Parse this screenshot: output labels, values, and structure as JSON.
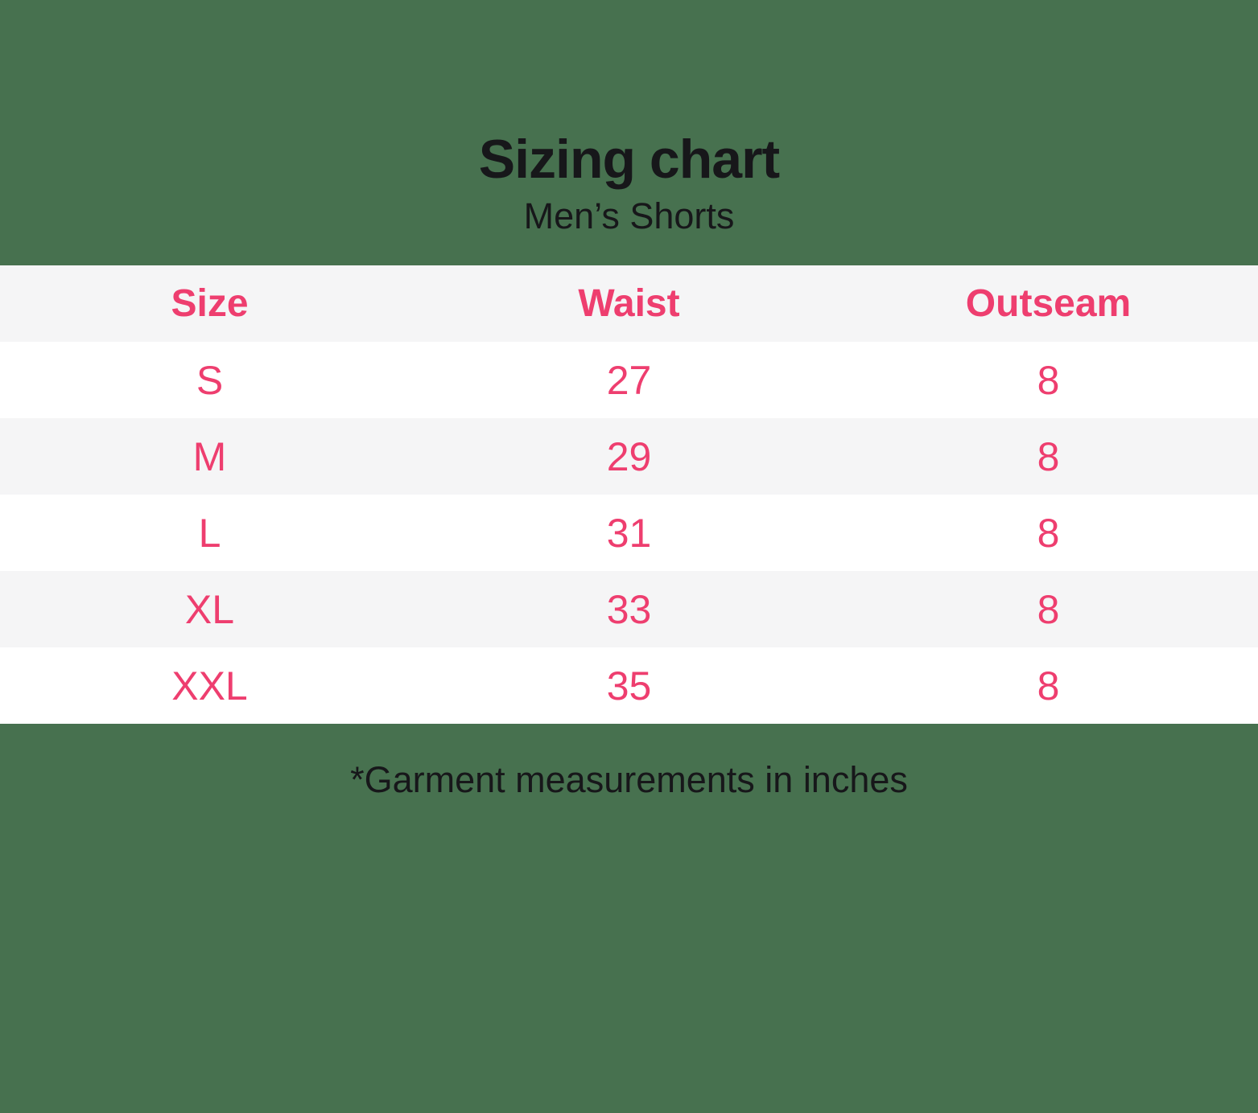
{
  "header": {
    "title": "Sizing chart",
    "subtitle": "Men’s Shorts"
  },
  "table": {
    "columns": [
      "Size",
      "Waist",
      "Outseam"
    ],
    "rows": [
      [
        "S",
        "27",
        "8"
      ],
      [
        "M",
        "29",
        "8"
      ],
      [
        "L",
        "31",
        "8"
      ],
      [
        "XL",
        "33",
        "8"
      ],
      [
        "XXL",
        "35",
        "8"
      ]
    ]
  },
  "footer": {
    "note": "*Garment measurements in inches"
  },
  "colors": {
    "background_green": "#47714F",
    "accent_pink": "#EE3E6F",
    "row_alt_gray": "#F5F5F6",
    "row_white": "#FFFFFF",
    "text_black": "#17171A"
  },
  "chart_data": {
    "type": "table",
    "title": "Sizing chart",
    "subtitle": "Men’s Shorts",
    "columns": [
      "Size",
      "Waist",
      "Outseam"
    ],
    "rows": [
      {
        "size": "S",
        "waist": 27,
        "outseam": 8
      },
      {
        "size": "M",
        "waist": 29,
        "outseam": 8
      },
      {
        "size": "L",
        "waist": 31,
        "outseam": 8
      },
      {
        "size": "XL",
        "waist": 33,
        "outseam": 8
      },
      {
        "size": "XXL",
        "waist": 35,
        "outseam": 8
      }
    ],
    "units_note": "*Garment measurements in inches",
    "layout_hints": {
      "row_striping": [
        "white",
        "light-gray"
      ],
      "header_background": "light-gray",
      "text_alignment": "center"
    }
  }
}
